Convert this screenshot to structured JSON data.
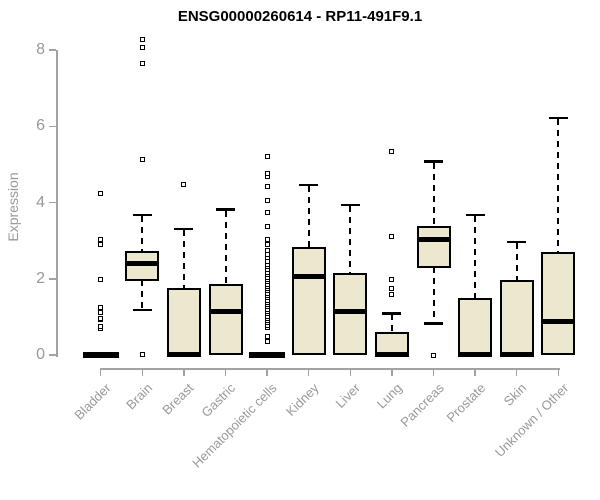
{
  "chart_data": {
    "type": "boxplot",
    "title": "ENSG00000260614 - RP11-491F9.1",
    "ylabel": "Expression",
    "xlabel": "",
    "ylim": [
      0,
      8
    ],
    "yticks": [
      0,
      2,
      4,
      6,
      8
    ],
    "grid": false,
    "legend": "none",
    "colors": {
      "box_fill": "#ece8d0",
      "box_border": "#000000",
      "median": "#000000",
      "axis": "#a2a2a2",
      "tick_label": "#999999",
      "title": "#000000"
    },
    "categories": [
      "Bladder",
      "Brain",
      "Breast",
      "Gastric",
      "Hematopoietic cells",
      "Kidney",
      "Liver",
      "Lung",
      "Pancreas",
      "Prostate",
      "Skin",
      "Unknown / Other"
    ],
    "series": [
      {
        "category": "Bladder",
        "low": 0,
        "q1": 0,
        "median": 0,
        "q3": 0,
        "high": 0,
        "outliers": [
          0.7,
          0.74,
          0.92,
          0.96,
          1.12,
          1.24,
          1.99,
          2.89,
          3.04,
          4.24
        ]
      },
      {
        "category": "Brain",
        "low": 1.18,
        "q1": 1.95,
        "median": 2.41,
        "q3": 2.74,
        "high": 3.67,
        "outliers": [
          0.02,
          5.12,
          7.65,
          8.07,
          8.28
        ]
      },
      {
        "category": "Breast",
        "low": 0,
        "q1": 0,
        "median": 0.02,
        "q3": 1.75,
        "high": 3.3,
        "outliers": [
          4.46
        ]
      },
      {
        "category": "Gastric",
        "low": 0,
        "q1": 0,
        "median": 1.14,
        "q3": 1.86,
        "high": 3.81,
        "outliers": []
      },
      {
        "category": "Hematopoietic cells",
        "low": 0,
        "q1": 0,
        "median": 0,
        "q3": 0,
        "high": 0,
        "outliers": [
          0.35,
          0.48,
          0.72,
          0.78,
          0.84,
          0.9,
          0.96,
          1.02,
          1.08,
          1.14,
          1.2,
          1.26,
          1.32,
          1.38,
          1.44,
          1.5,
          1.56,
          1.62,
          1.68,
          1.74,
          1.8,
          1.86,
          1.92,
          1.98,
          2.04,
          2.1,
          2.17,
          2.24,
          2.31,
          2.38,
          2.46,
          2.55,
          2.64,
          2.74,
          2.89,
          3.04,
          3.38,
          3.73,
          4.06,
          4.41,
          4.67,
          4.76,
          5.21
        ]
      },
      {
        "category": "Kidney",
        "low": 0,
        "q1": 0,
        "median": 2.05,
        "q3": 2.84,
        "high": 4.46,
        "outliers": []
      },
      {
        "category": "Liver",
        "low": 0,
        "q1": 0,
        "median": 1.15,
        "q3": 2.16,
        "high": 3.94,
        "outliers": []
      },
      {
        "category": "Lung",
        "low": 0,
        "q1": 0,
        "median": 0.02,
        "q3": 0.61,
        "high": 1.09,
        "outliers": [
          1.6,
          1.75,
          1.97,
          3.12,
          5.34
        ]
      },
      {
        "category": "Pancreas",
        "low": 0.83,
        "q1": 2.28,
        "median": 3.02,
        "q3": 3.39,
        "high": 5.07,
        "outliers": [
          0
        ]
      },
      {
        "category": "Prostate",
        "low": 0,
        "q1": 0,
        "median": 0.02,
        "q3": 1.49,
        "high": 3.67,
        "outliers": []
      },
      {
        "category": "Skin",
        "low": 0,
        "q1": 0,
        "median": 0.02,
        "q3": 1.97,
        "high": 2.97,
        "outliers": []
      },
      {
        "category": "Unknown / Other",
        "low": 0,
        "q1": 0,
        "median": 0.87,
        "q3": 2.71,
        "high": 6.21,
        "outliers": []
      }
    ]
  }
}
